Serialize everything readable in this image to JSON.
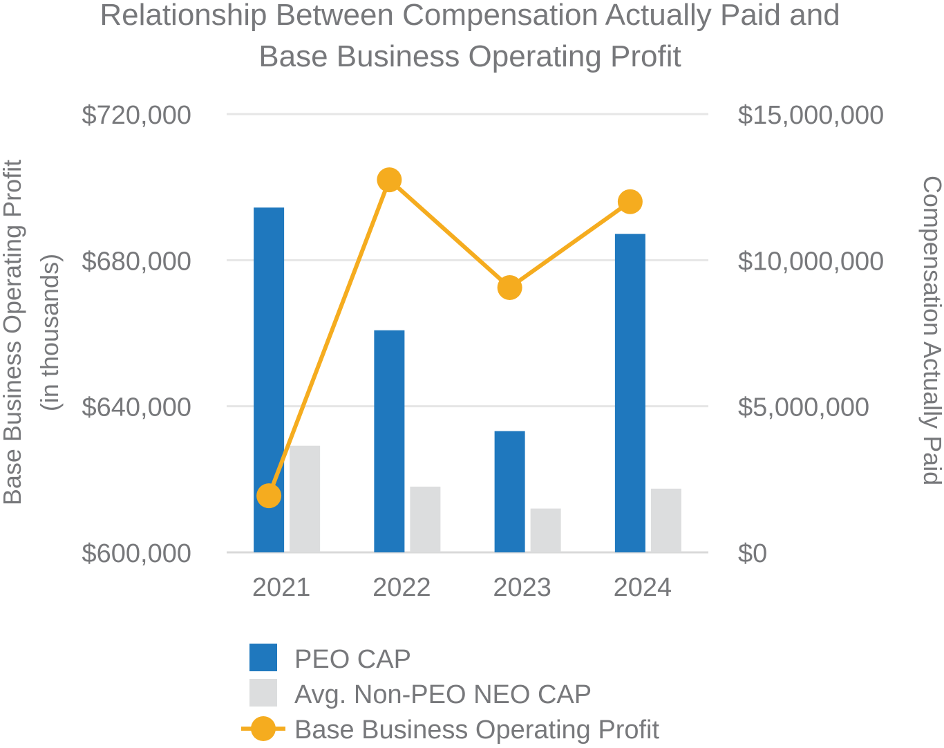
{
  "chart_data": {
    "type": "bar",
    "title_lines": [
      "Relationship Between Compensation Actually Paid and",
      "Base Business Operating Profit"
    ],
    "categories": [
      "2021",
      "2022",
      "2023",
      "2024"
    ],
    "y_left": {
      "label_lines": [
        "Base Business Operating Profit",
        "(in thousands)"
      ],
      "range": [
        600000,
        720000
      ],
      "ticks": [
        600000,
        640000,
        680000,
        720000
      ],
      "tick_labels": [
        "$600,000",
        "$640,000",
        "$680,000",
        "$720,000"
      ]
    },
    "y_right": {
      "label": "Compensation Actually Paid",
      "range": [
        0,
        15000000
      ],
      "ticks": [
        0,
        5000000,
        10000000,
        15000000
      ],
      "tick_labels": [
        "$0",
        "$5,000,000",
        "$10,000,000",
        "$15,000,000"
      ]
    },
    "series": [
      {
        "name": "PEO CAP",
        "type": "bar",
        "axis": "right",
        "color": "#1f78be",
        "values": [
          11800000,
          7600000,
          4150000,
          10900000
        ]
      },
      {
        "name": "Avg. Non-PEO NEO CAP",
        "type": "bar",
        "axis": "right",
        "color": "#dcddde",
        "values": [
          3650000,
          2250000,
          1500000,
          2180000
        ]
      },
      {
        "name": "Base Business Operating Profit",
        "type": "line",
        "axis": "left",
        "color": "#f5ac1f",
        "values": [
          615500,
          702000,
          672500,
          696000
        ]
      }
    ],
    "grid": true,
    "legend_position": "bottom"
  }
}
